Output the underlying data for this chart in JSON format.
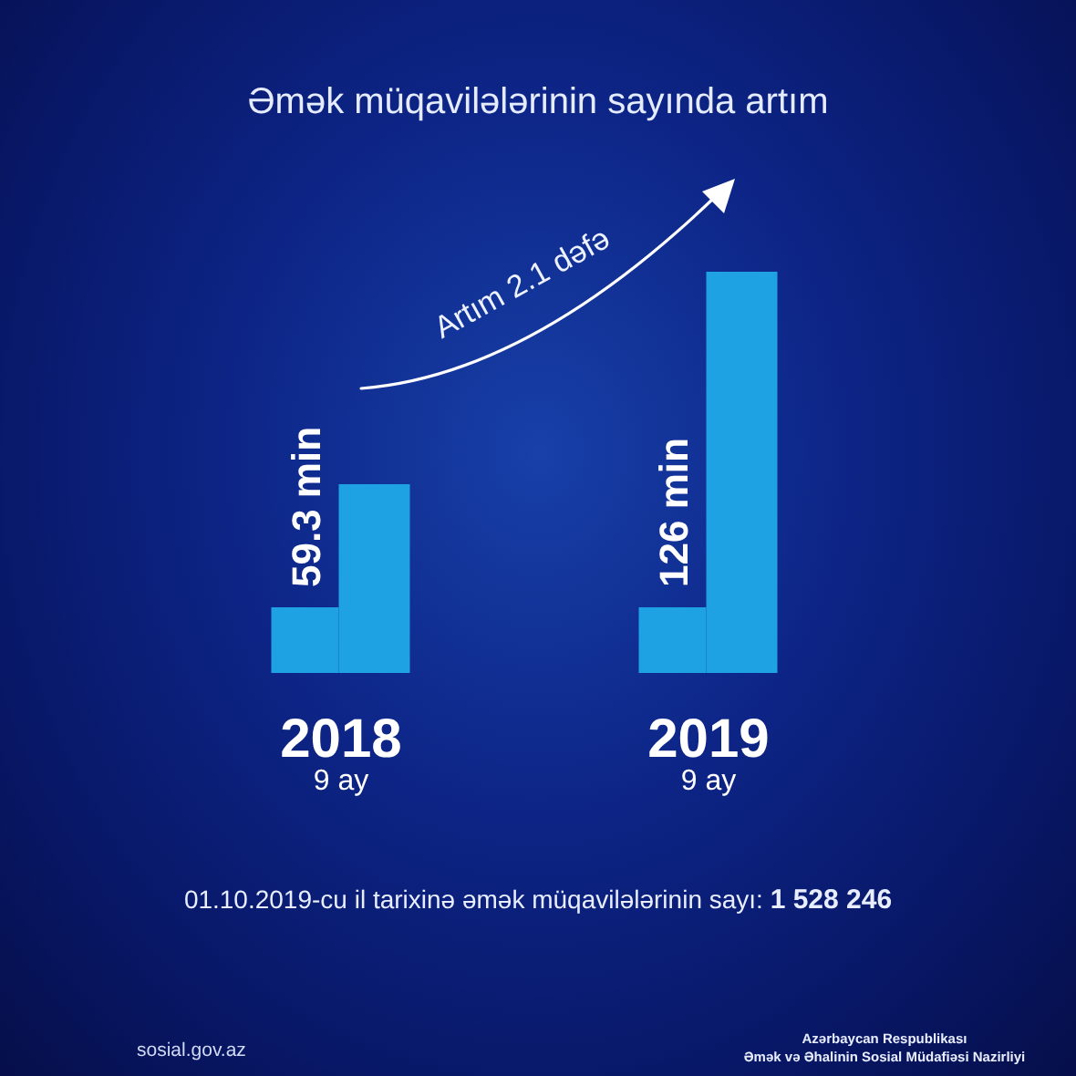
{
  "chart_data": {
    "type": "bar",
    "title": "Əmək müqavilələrinin sayında artım",
    "categories": [
      "2018\n9 ay",
      "2019\n9 ay"
    ],
    "values": [
      59.3,
      126
    ],
    "value_labels": [
      "59.3 min",
      "126 min"
    ],
    "color": "#1fa2e3",
    "annotations": [
      "Artım 2.1 dəfə",
      "01.10.2019-cu il tarixinə əmək müqavilələrinin sayı: 1 528 246",
      "sosial.gov.az",
      "Azərbaycan Respublikası\nƏmək və Əhalinin Sosial Müdafiəsi Nazirliyi"
    ]
  }
}
